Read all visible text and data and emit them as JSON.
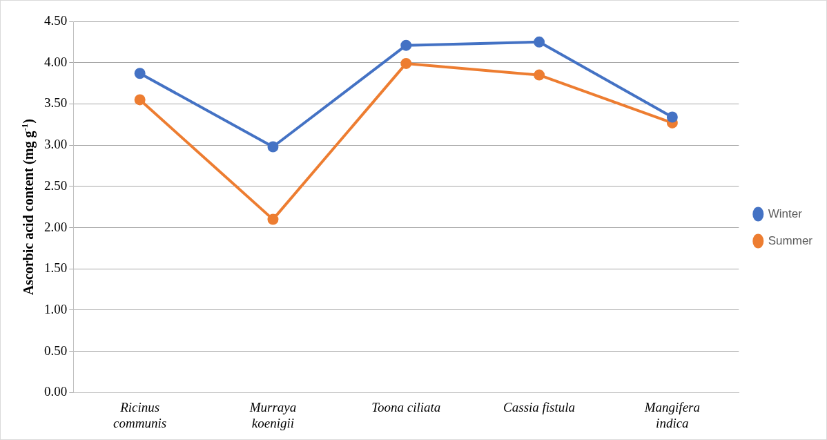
{
  "chart_data": {
    "type": "line",
    "ylabel": "Ascorbic acid content (mg g$^{-1}$)",
    "categories": [
      "Ricinus communis",
      "Murraya koenigii",
      "Toona ciliata",
      "Cassia fistula",
      "Mangifera indica"
    ],
    "series": [
      {
        "name": "Winter",
        "color": "#4472c4",
        "values": [
          3.87,
          2.98,
          4.21,
          4.25,
          3.34
        ]
      },
      {
        "name": "Summer",
        "color": "#ed7d31",
        "values": [
          3.55,
          2.1,
          3.99,
          3.85,
          3.27
        ]
      }
    ],
    "ylim": [
      0,
      4.5
    ],
    "yticks": [
      {
        "value": 0,
        "label": "0.00"
      },
      {
        "value": 0.5,
        "label": "0.50"
      },
      {
        "value": 1,
        "label": "1.00"
      },
      {
        "value": 1.5,
        "label": "1.50"
      },
      {
        "value": 2,
        "label": "2.00"
      },
      {
        "value": 2.5,
        "label": "2.50"
      },
      {
        "value": 3,
        "label": "3.00"
      },
      {
        "value": 3.5,
        "label": "3.50"
      },
      {
        "value": 4,
        "label": "4.00"
      },
      {
        "value": 4.5,
        "label": "4.50"
      }
    ],
    "grid": "y",
    "legend": "right",
    "marker": "circle",
    "line_style": "solid"
  }
}
